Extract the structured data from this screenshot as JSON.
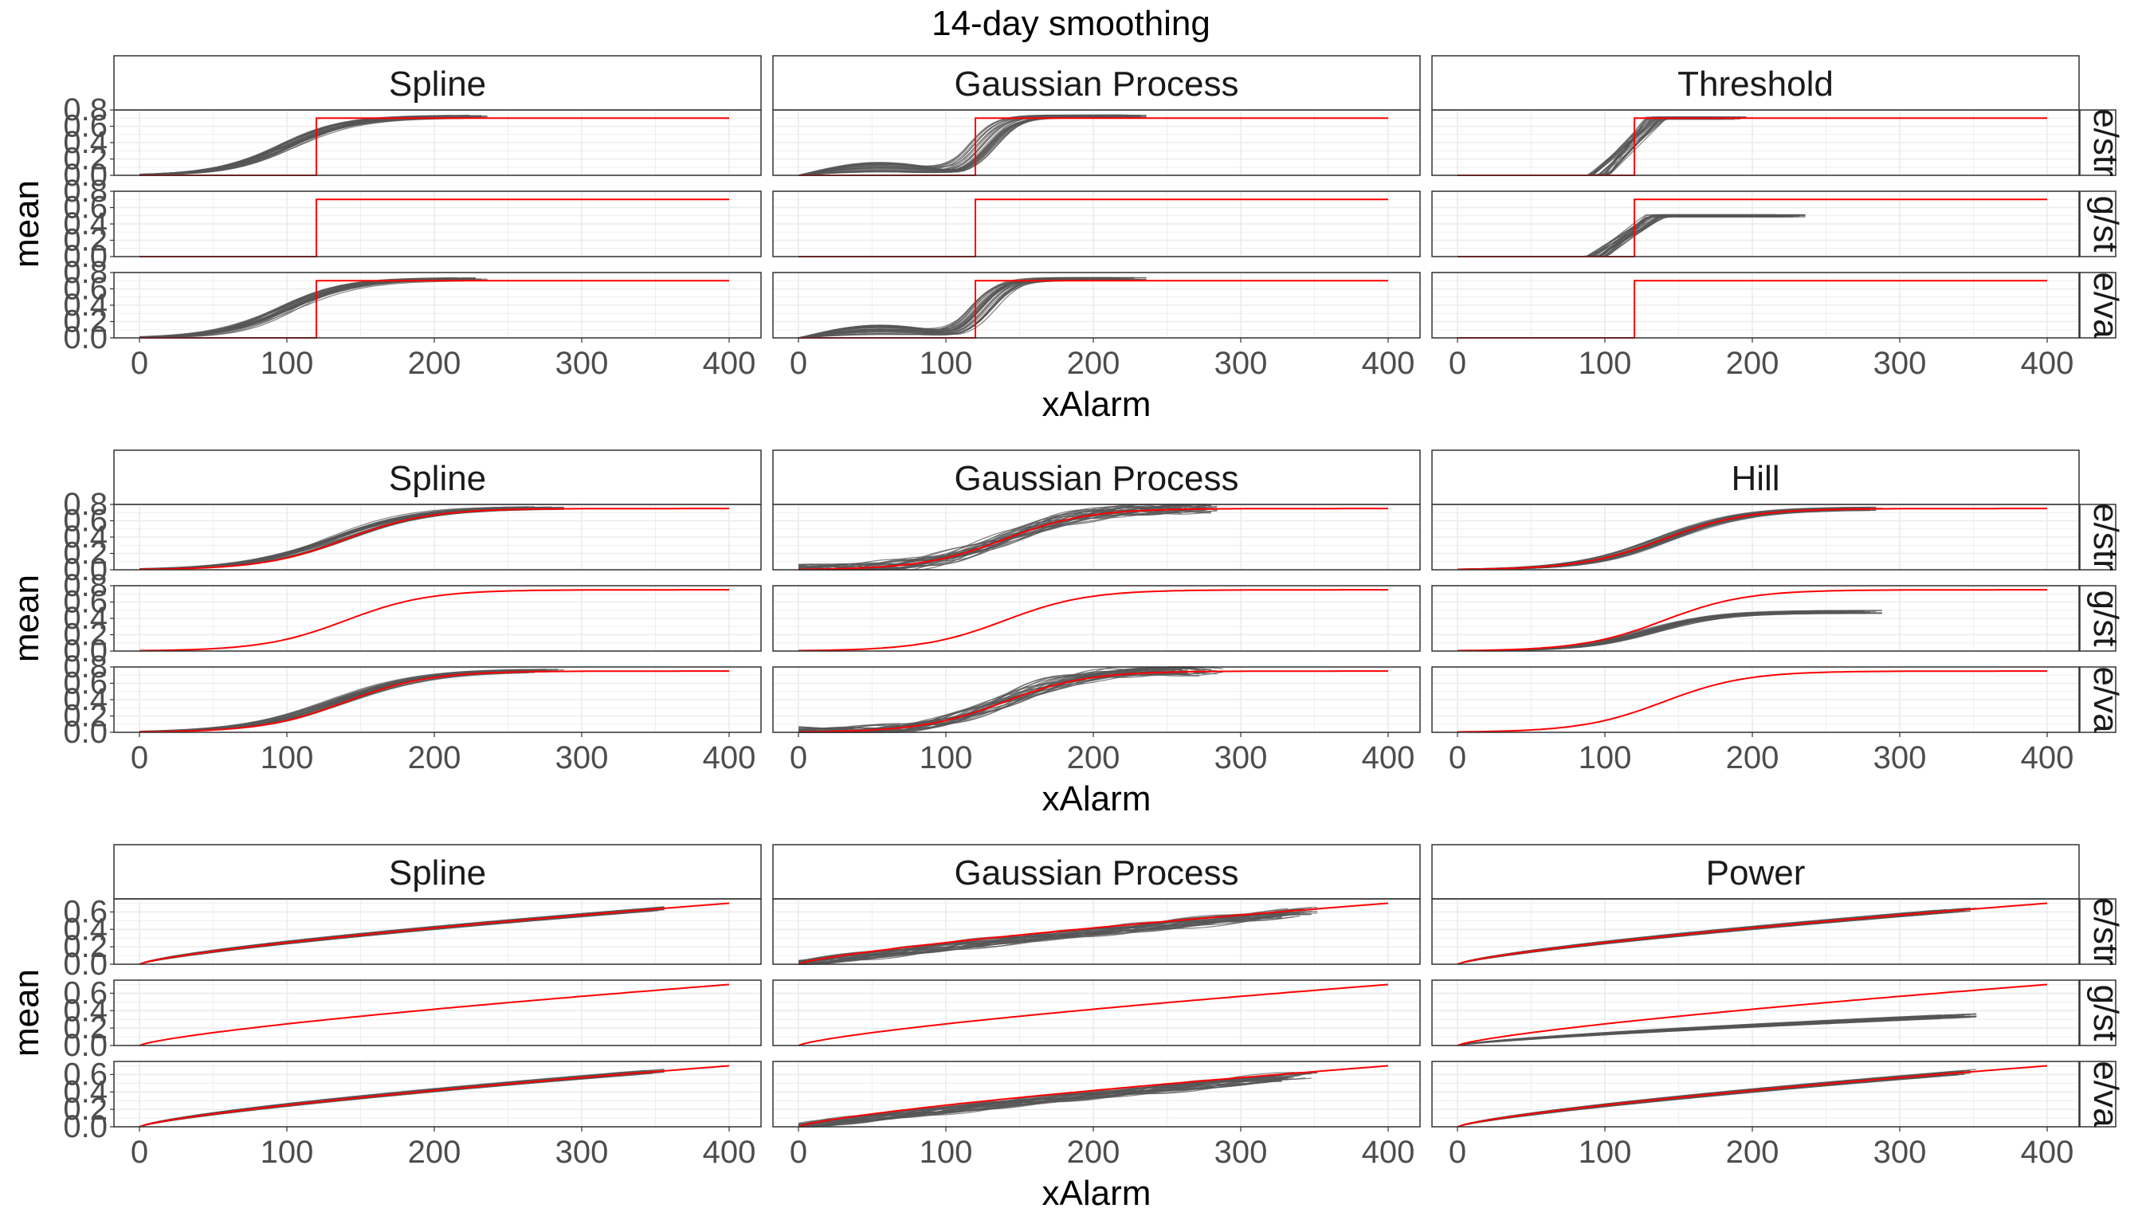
{
  "chart_data": {
    "type": "line",
    "title": "14-day smoothing",
    "xlabel": "xAlarm",
    "ylabel": "mean",
    "xlim": [
      0,
      400
    ],
    "x_ticks": [
      "0",
      "100",
      "200",
      "300",
      "400"
    ],
    "grid": true,
    "legend": "none",
    "colors": {
      "truth": "#ff0000",
      "fits": "#555555",
      "panel_border": "#333333",
      "strip_fill": "#ffffff",
      "grid": "#ebebeb"
    },
    "row_strip_labels": [
      "e/str",
      "g/st",
      "e/va"
    ],
    "sections": [
      {
        "truth_shape": "step",
        "truth_change": 120,
        "truth_level": 0.7,
        "y_ticks": [
          "0.0",
          "0.2",
          "0.4",
          "0.6",
          "0.8"
        ],
        "ylim": [
          0,
          0.8
        ],
        "columns": [
          {
            "label": "Spline",
            "rows": [
              {
                "fits": "sigmoid",
                "fit_center": 100,
                "fit_scale": 22,
                "fit_level": 0.72,
                "fit_max_x": 240,
                "fit_count": 30
              },
              {
                "fits": "none"
              },
              {
                "fits": "sigmoid",
                "fit_center": 100,
                "fit_scale": 22,
                "fit_level": 0.72,
                "fit_max_x": 240,
                "fit_count": 30
              }
            ]
          },
          {
            "label": "Gaussian Process",
            "rows": [
              {
                "fits": "gp",
                "fit_center": 125,
                "fit_level": 0.72,
                "fit_max_x": 240,
                "fit_count": 30
              },
              {
                "fits": "none"
              },
              {
                "fits": "gp",
                "fit_center": 125,
                "fit_level": 0.72,
                "fit_max_x": 240,
                "fit_count": 30
              }
            ]
          },
          {
            "label": "Threshold",
            "rows": [
              {
                "fits": "ramp",
                "fit_start": 95,
                "fit_end": 135,
                "fit_level": 0.7,
                "fit_max_x": 200,
                "fit_count": 30
              },
              {
                "fits": "ramp",
                "fit_start": 95,
                "fit_end": 135,
                "fit_level": 0.5,
                "fit_max_x": 240,
                "fit_count": 30
              },
              {
                "fits": "none"
              }
            ]
          }
        ]
      },
      {
        "truth_shape": "sigmoid",
        "truth_center": 140,
        "truth_scale": 28,
        "truth_level": 0.75,
        "y_ticks": [
          "0.0",
          "0.2",
          "0.4",
          "0.6",
          "0.8"
        ],
        "ylim": [
          0,
          0.8
        ],
        "columns": [
          {
            "label": "Spline",
            "rows": [
              {
                "fits": "sigmoid",
                "fit_center": 135,
                "fit_scale": 30,
                "fit_level": 0.76,
                "fit_max_x": 290,
                "fit_count": 30
              },
              {
                "fits": "none"
              },
              {
                "fits": "sigmoid",
                "fit_center": 135,
                "fit_scale": 30,
                "fit_level": 0.76,
                "fit_max_x": 290,
                "fit_count": 30
              }
            ]
          },
          {
            "label": "Gaussian Process",
            "rows": [
              {
                "fits": "gpsig",
                "fit_center": 140,
                "fit_scale": 28,
                "fit_level": 0.76,
                "fit_max_x": 290,
                "fit_count": 30
              },
              {
                "fits": "none"
              },
              {
                "fits": "gpsig",
                "fit_center": 140,
                "fit_scale": 28,
                "fit_level": 0.76,
                "fit_max_x": 290,
                "fit_count": 30
              }
            ]
          },
          {
            "label": "Hill",
            "rows": [
              {
                "fits": "sigmoid",
                "fit_center": 140,
                "fit_scale": 28,
                "fit_level": 0.75,
                "fit_max_x": 290,
                "fit_count": 30
              },
              {
                "fits": "sigmoid",
                "fit_center": 130,
                "fit_scale": 25,
                "fit_level": 0.48,
                "fit_max_x": 290,
                "fit_count": 30
              },
              {
                "fits": "none"
              }
            ]
          }
        ]
      },
      {
        "truth_shape": "power",
        "truth_level": 0.7,
        "truth_power": 0.75,
        "y_ticks": [
          "0.0",
          "0.2",
          "0.4",
          "0.6"
        ],
        "ylim": [
          0,
          0.75
        ],
        "columns": [
          {
            "label": "Spline",
            "rows": [
              {
                "fits": "power",
                "fit_level": 0.7,
                "fit_power": 0.75,
                "fit_max_x": 360,
                "fit_count": 30
              },
              {
                "fits": "none"
              },
              {
                "fits": "power",
                "fit_level": 0.7,
                "fit_power": 0.75,
                "fit_max_x": 360,
                "fit_count": 30
              }
            ]
          },
          {
            "label": "Gaussian Process",
            "rows": [
              {
                "fits": "gppow",
                "fit_level": 0.68,
                "fit_power": 0.9,
                "fit_max_x": 355,
                "fit_count": 30
              },
              {
                "fits": "none"
              },
              {
                "fits": "gppow",
                "fit_level": 0.68,
                "fit_power": 0.9,
                "fit_max_x": 355,
                "fit_count": 30
              }
            ]
          },
          {
            "label": "Power",
            "rows": [
              {
                "fits": "power",
                "fit_level": 0.7,
                "fit_power": 0.75,
                "fit_max_x": 355,
                "fit_count": 30
              },
              {
                "fits": "power",
                "fit_level": 0.38,
                "fit_power": 0.75,
                "fit_max_x": 355,
                "fit_count": 30
              },
              {
                "fits": "power",
                "fit_level": 0.7,
                "fit_power": 0.75,
                "fit_max_x": 355,
                "fit_count": 30
              }
            ]
          }
        ]
      }
    ]
  }
}
